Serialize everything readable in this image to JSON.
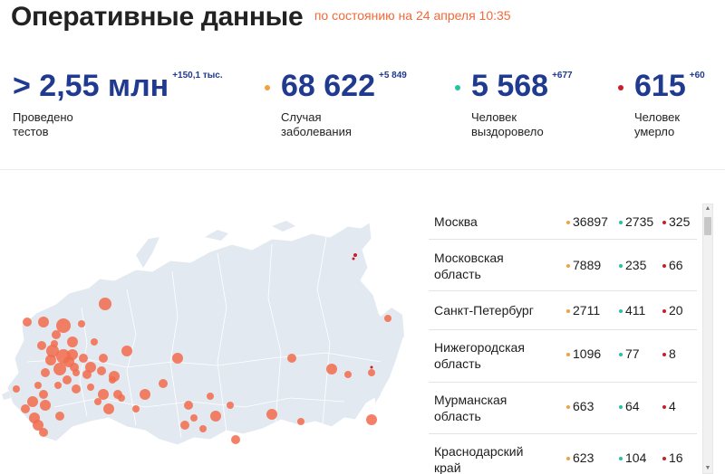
{
  "header": {
    "title": "Оперативные данные",
    "subtitle": "по состоянию на 24 апреля 10:35"
  },
  "stats": [
    {
      "value": "> 2,55 млн",
      "delta": "+150,1 тыс.",
      "label": "Проведено\nтестов",
      "dot_color": ""
    },
    {
      "value": "68 622",
      "delta": "+5 849",
      "label": "Случая\nзаболевания",
      "dot_color": "#f3a03f"
    },
    {
      "value": "5 568",
      "delta": "+677",
      "label": "Человек\nвыздоровело",
      "dot_color": "#22c3a0"
    },
    {
      "value": "615",
      "delta": "+60",
      "label": "Человек\nумерло",
      "dot_color": "#c81e2b"
    }
  ],
  "colors": {
    "cases": "#f3a03f",
    "recovered": "#22c3a0",
    "deaths": "#c81e2b",
    "map_land": "#e3e9f1",
    "map_marker": "#f26b4c"
  },
  "table": {
    "rows": [
      {
        "region": "Москва",
        "cases": "36897",
        "recovered": "2735",
        "deaths": "325"
      },
      {
        "region": "Московская\nобласть",
        "cases": "7889",
        "recovered": "235",
        "deaths": "66"
      },
      {
        "region": "Санкт-Петербург",
        "cases": "2711",
        "recovered": "411",
        "deaths": "20"
      },
      {
        "region": "Нижегородская\nобласть",
        "cases": "1096",
        "recovered": "77",
        "deaths": "8"
      },
      {
        "region": "Мурманская\nобласть",
        "cases": "663",
        "recovered": "64",
        "deaths": "4"
      },
      {
        "region": "Краснодарский\nкрай",
        "cases": "623",
        "recovered": "104",
        "deaths": "16"
      }
    ]
  }
}
